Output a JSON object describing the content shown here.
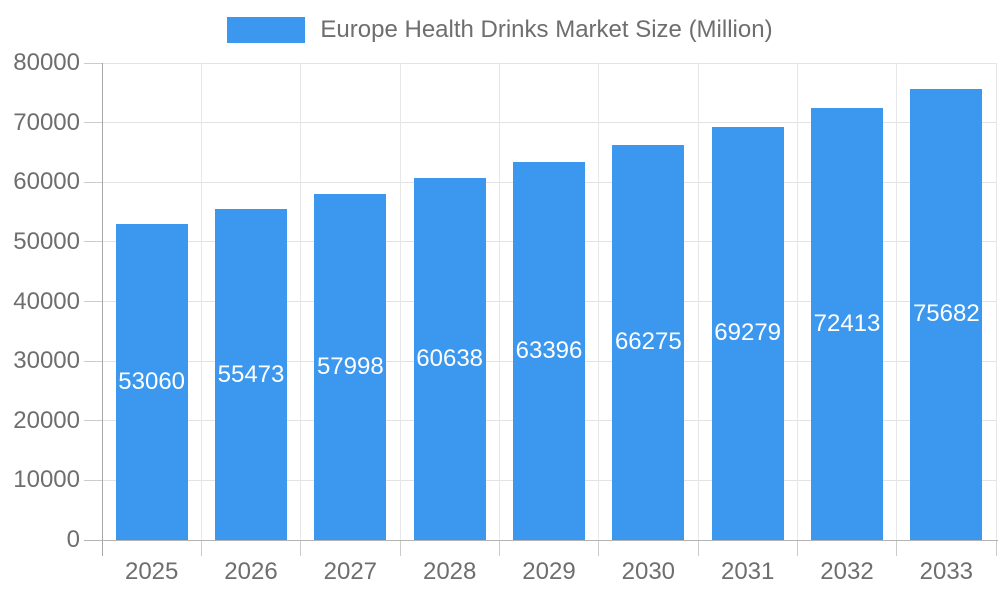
{
  "chart_data": {
    "type": "bar",
    "title": "",
    "legend_label": "Europe Health Drinks Market Size (Million)",
    "legend_position": "top-center",
    "categories": [
      "2025",
      "2026",
      "2027",
      "2028",
      "2029",
      "2030",
      "2031",
      "2032",
      "2033"
    ],
    "values": [
      53060,
      55473,
      57998,
      60638,
      63396,
      66275,
      69279,
      72413,
      75682
    ],
    "value_labels_shown": true,
    "xlabel": "",
    "ylabel": "",
    "ylim": [
      0,
      80000
    ],
    "ytick_step": 10000,
    "yticks": [
      0,
      10000,
      20000,
      30000,
      40000,
      50000,
      60000,
      70000,
      80000
    ],
    "grid": true,
    "colors": {
      "bar": "#3b98ee",
      "bar_value_label": "#ffffff",
      "axis_text": "#6e6e6e",
      "grid_line": "#e3e3e3",
      "axis_line": "#a6a6a6",
      "background": "#ffffff"
    }
  }
}
